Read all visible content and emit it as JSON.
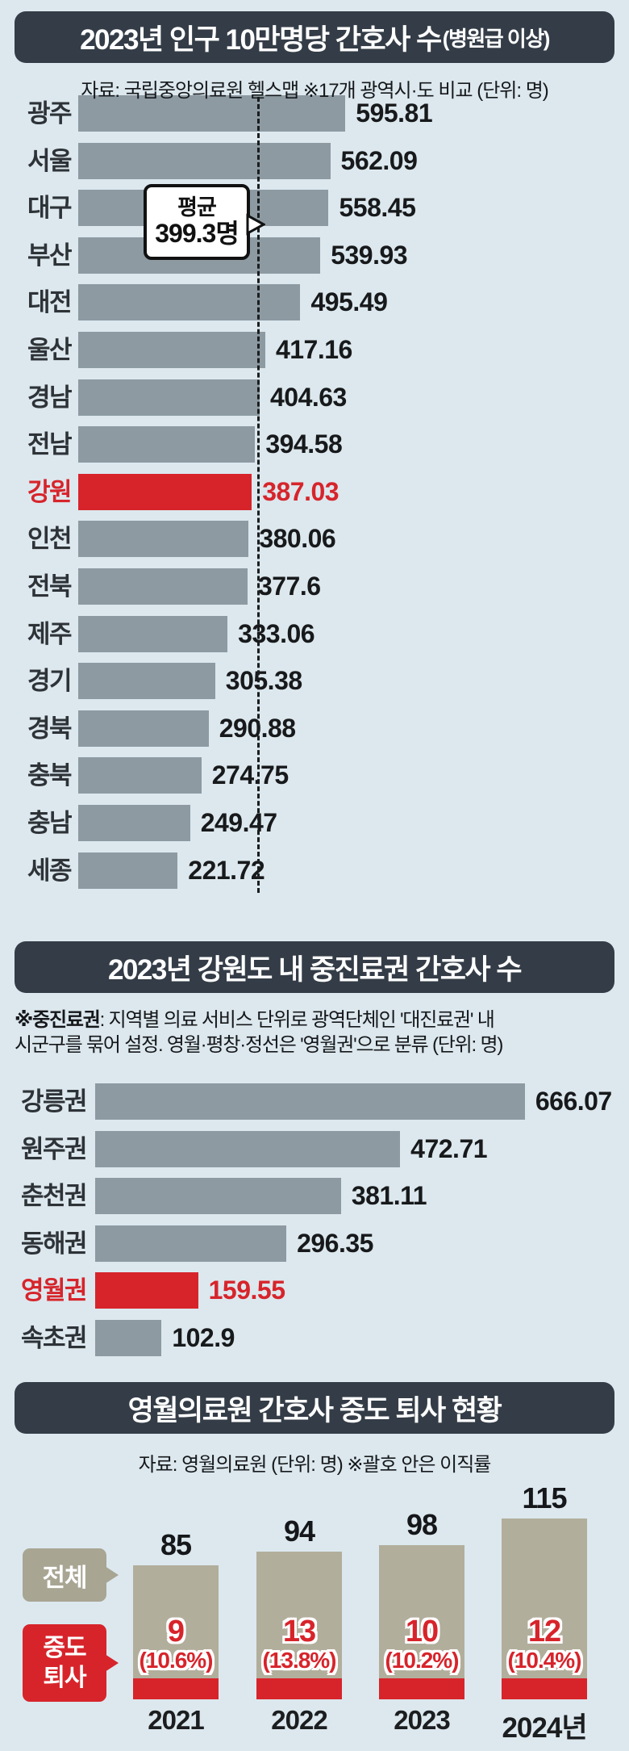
{
  "colors": {
    "background": "#dce8ee",
    "title_bar": "#343d47",
    "bar_gray_blue": "#8d9aa2",
    "highlight_red": "#d7242b",
    "bar_tan": "#b2ae9c",
    "bubble_tan": "#a8a593",
    "text_dark": "#16191c"
  },
  "chart_data": [
    {
      "type": "bar",
      "orientation": "horizontal",
      "title_main": "2023년 인구 10만명당 간호사 수",
      "title_paren": "(병원급 이상)",
      "source_note": "자료: 국립중앙의료원 헬스맵  ※17개 광역시·도 비교  (단위: 명)",
      "unit": "명",
      "categories": [
        "광주",
        "서울",
        "대구",
        "부산",
        "대전",
        "울산",
        "경남",
        "전남",
        "강원",
        "인천",
        "전북",
        "제주",
        "경기",
        "경북",
        "충북",
        "충남",
        "세종"
      ],
      "values": [
        595.81,
        562.09,
        558.45,
        539.93,
        495.49,
        417.16,
        404.63,
        394.58,
        387.03,
        380.06,
        377.6,
        333.06,
        305.38,
        290.88,
        274.75,
        249.47,
        221.72
      ],
      "highlight_category": "강원",
      "average": {
        "value": 399.3,
        "label_line1": "평균",
        "label_line2": "399.3명"
      },
      "legend_position": "none",
      "grid": false
    },
    {
      "type": "bar",
      "orientation": "horizontal",
      "title_main": "2023년 강원도 내 중진료권 간호사 수",
      "note_bold": "※중진료권",
      "note_line1_rest": ": 지역별 의료 서비스 단위로 광역단체인 '대진료권' 내",
      "note_line2": "시군구를 묶어 설정. 영월·평창·정선은 '영월권'으로 분류  (단위: 명)",
      "unit": "명",
      "categories": [
        "강릉권",
        "원주권",
        "춘천권",
        "동해권",
        "영월권",
        "속초권"
      ],
      "values": [
        666.07,
        472.71,
        381.11,
        296.35,
        159.55,
        102.9
      ],
      "highlight_category": "영월권",
      "legend_position": "none",
      "grid": false
    },
    {
      "type": "bar",
      "orientation": "vertical",
      "title_main": "영월의료원 간호사 중도 퇴사 현황",
      "source_note": "자료: 영월의료원  (단위: 명)  ※괄호 안은 이직률",
      "unit": "명",
      "categories": [
        "2021",
        "2022",
        "2023",
        "2024년"
      ],
      "series": [
        {
          "name": "전체",
          "values": [
            85,
            94,
            98,
            115
          ]
        },
        {
          "name": "중도 퇴사",
          "values": [
            9,
            13,
            10,
            12
          ]
        },
        {
          "name": "이직률",
          "values": [
            "(10.6%)",
            "(13.8%)",
            "(10.2%)",
            "(10.4%)"
          ]
        }
      ],
      "legend": {
        "total_label": "전체",
        "resign_line1": "중도",
        "resign_line2": "퇴사"
      },
      "grid": false
    }
  ]
}
